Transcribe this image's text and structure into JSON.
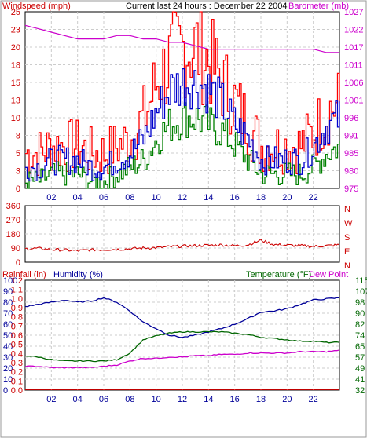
{
  "header": {
    "windspeed_label": "Windspeed (mph)",
    "title": "Current last 24 hours : December 22 2004",
    "barometer_label": "Barometer (mb)"
  },
  "panel2": {
    "direction_labels": [
      "N",
      "W",
      "S",
      "E",
      "N"
    ]
  },
  "panel3": {
    "rainfall_label": "Rainfall (in)",
    "humidity_label": "Humidity (%)",
    "temperature_label": "Temperature (°F)",
    "dewpoint_label": "Dew Point"
  },
  "colors": {
    "gust": "#ff0000",
    "wind_avg": "#0000cc",
    "wind_min": "#008000",
    "barometer": "#cc00cc",
    "direction": "#cc0000",
    "humidity": "#000099",
    "temperature": "#006600",
    "dewpoint": "#cc00cc",
    "axis_left": "#cc0000",
    "axis_right": "#cc00cc",
    "axis_blue": "#000099",
    "axis_green": "#006600"
  },
  "chart_data": [
    {
      "type": "line",
      "panel": "wind-barometer",
      "x_ticks": [
        "02",
        "04",
        "06",
        "08",
        "10",
        "12",
        "14",
        "16",
        "18",
        "20",
        "22"
      ],
      "y_left_ticks": [
        "0",
        "3",
        "5",
        "8",
        "10",
        "13",
        "15",
        "18",
        "20",
        "23",
        "25"
      ],
      "y_right_ticks": [
        "975",
        "980",
        "985",
        "991",
        "996",
        "1001",
        "1006",
        "1011",
        "1017",
        "1022",
        "1027"
      ],
      "ylim_left": [
        0,
        25
      ],
      "ylim_right": [
        975,
        1027
      ],
      "x": [
        0,
        1,
        2,
        3,
        4,
        5,
        6,
        7,
        8,
        9,
        10,
        11,
        12,
        13,
        14,
        15,
        16,
        17,
        18,
        19,
        20,
        21,
        22,
        23,
        24
      ],
      "series": [
        {
          "key": "gust",
          "values": [
            5,
            5,
            6,
            6,
            6,
            5,
            5,
            6,
            7,
            10,
            15,
            18,
            20,
            20,
            18,
            15,
            12,
            9,
            6,
            6,
            6,
            6,
            8,
            11,
            12
          ]
        },
        {
          "key": "avg",
          "values": [
            3,
            3,
            4,
            4,
            4,
            3,
            3,
            4,
            5,
            7,
            11,
            14,
            15,
            15,
            14,
            12,
            9,
            7,
            4,
            4,
            4,
            4,
            6,
            9,
            10
          ]
        },
        {
          "key": "min",
          "values": [
            1,
            1,
            2,
            2,
            2,
            1,
            1,
            2,
            3,
            4,
            7,
            9,
            10,
            10,
            9,
            8,
            6,
            4,
            2,
            2,
            2,
            2,
            3,
            5,
            6
          ]
        },
        {
          "key": "barometer",
          "values": [
            1023,
            1022,
            1021,
            1020,
            1019,
            1019,
            1019,
            1020,
            1020,
            1019,
            1019,
            1018,
            1018,
            1017,
            1016,
            1016,
            1016,
            1016,
            1016,
            1016,
            1016,
            1016,
            1016,
            1015,
            1015
          ]
        }
      ]
    },
    {
      "type": "line",
      "panel": "wind-direction",
      "x_ticks": [],
      "y_left_ticks": [
        "0",
        "90",
        "180",
        "270",
        "360"
      ],
      "ylim_left": [
        0,
        360
      ],
      "x": [
        0,
        1,
        2,
        3,
        4,
        5,
        6,
        7,
        8,
        9,
        10,
        11,
        12,
        13,
        14,
        15,
        16,
        17,
        18,
        19,
        20,
        21,
        22,
        23,
        24
      ],
      "series": [
        {
          "key": "direction",
          "values": [
            85,
            88,
            80,
            78,
            72,
            78,
            80,
            82,
            85,
            90,
            92,
            98,
            102,
            105,
            108,
            110,
            105,
            110,
            140,
            112,
            108,
            105,
            100,
            105,
            110
          ]
        }
      ]
    },
    {
      "type": "line",
      "panel": "rain-humidity-temperature",
      "x_ticks": [
        "02",
        "04",
        "06",
        "08",
        "10",
        "12",
        "14",
        "16",
        "18",
        "20",
        "22"
      ],
      "y_rain_ticks": [
        "0.0",
        "0.1",
        "0.2",
        "0.3",
        "0.4",
        "0.5",
        "0.6",
        "0.7",
        "0.8",
        "0.9",
        "1.0",
        "1.1",
        "1.2"
      ],
      "y_humidity_ticks": [
        "0",
        "10",
        "20",
        "30",
        "40",
        "50",
        "60",
        "70",
        "80",
        "90",
        "100"
      ],
      "y_temp_ticks": [
        "32",
        "41",
        "49",
        "57",
        "65",
        "74",
        "82",
        "90",
        "98",
        "107",
        "115"
      ],
      "ylim_humidity": [
        0,
        100
      ],
      "ylim_temp": [
        32,
        115
      ],
      "x": [
        0,
        1,
        2,
        3,
        4,
        5,
        6,
        7,
        8,
        9,
        10,
        11,
        12,
        13,
        14,
        15,
        16,
        17,
        18,
        19,
        20,
        21,
        22,
        23,
        24
      ],
      "series": [
        {
          "key": "rainfall",
          "values": [
            0,
            0,
            0,
            0,
            0,
            0,
            0,
            0,
            0,
            0,
            0,
            0,
            0,
            0,
            0,
            0,
            0,
            0,
            0,
            0,
            0,
            0,
            0,
            0,
            0
          ]
        },
        {
          "key": "humidity",
          "values": [
            76,
            78,
            80,
            82,
            80,
            81,
            84,
            80,
            72,
            62,
            56,
            50,
            48,
            50,
            53,
            56,
            60,
            65,
            71,
            72,
            74,
            78,
            82,
            83,
            84
          ]
        },
        {
          "key": "temperature",
          "values": [
            58,
            57,
            55,
            54,
            54,
            54,
            54,
            55,
            60,
            70,
            73,
            75,
            76,
            76,
            76,
            76,
            75,
            74,
            72,
            71,
            70,
            69,
            69,
            68,
            68
          ]
        },
        {
          "key": "dewpoint",
          "values": [
            50,
            50,
            49,
            49,
            49,
            49,
            50,
            51,
            54,
            56,
            56,
            57,
            57,
            58,
            58,
            59,
            59,
            60,
            60,
            60,
            60,
            61,
            61,
            61,
            62
          ]
        }
      ]
    }
  ]
}
